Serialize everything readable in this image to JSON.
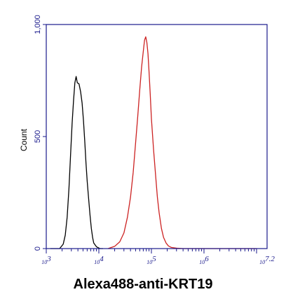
{
  "chart_data": {
    "type": "line",
    "xlabel": "Alexa488-anti-KRT19",
    "ylabel": "Count",
    "x_scale": "log",
    "xlim": [
      1000,
      15848932
    ],
    "ylim": [
      0,
      1000
    ],
    "y_ticks": [
      "0",
      "500",
      "1,000"
    ],
    "x_ticks": [
      {
        "base": "10",
        "exp": "3",
        "value": 1000
      },
      {
        "base": "10",
        "exp": "4",
        "value": 10000
      },
      {
        "base": "10",
        "exp": "5",
        "value": 100000
      },
      {
        "base": "10",
        "exp": "6",
        "value": 1000000
      },
      {
        "base": "10",
        "exp": "7.2",
        "value": 15848932
      }
    ],
    "grid": false,
    "legend": "none",
    "colors": {
      "axis": "#1a1a8c",
      "control": "#000000",
      "stained": "#cc2222"
    },
    "series": [
      {
        "color": "#000000",
        "x": [
          1200,
          1500,
          1800,
          2100,
          2300,
          2500,
          2700,
          2900,
          3100,
          3300,
          3500,
          3700,
          3900,
          4200,
          4500,
          4800,
          5100,
          5400,
          5700,
          6000,
          6400,
          6800,
          7200,
          7600,
          8000,
          9000,
          10500,
          12000
        ],
        "y": [
          0,
          0,
          0,
          20,
          60,
          140,
          270,
          420,
          560,
          660,
          740,
          768,
          740,
          735,
          700,
          650,
          570,
          480,
          380,
          300,
          220,
          150,
          90,
          50,
          25,
          8,
          0,
          0
        ]
      },
      {
        "color": "#cc2222",
        "x": [
          15000,
          20000,
          25000,
          30000,
          35000,
          40000,
          45000,
          50000,
          55000,
          60000,
          65000,
          70000,
          74000,
          78000,
          82000,
          86000,
          90000,
          95000,
          100000,
          110000,
          120000,
          130000,
          140000,
          155000,
          170000,
          190000,
          210000,
          240000,
          300000,
          400000,
          1000000,
          10000000
        ],
        "y": [
          0,
          10,
          30,
          70,
          140,
          230,
          340,
          470,
          590,
          710,
          810,
          880,
          930,
          945,
          920,
          870,
          790,
          690,
          580,
          440,
          330,
          230,
          160,
          90,
          50,
          25,
          12,
          5,
          2,
          0,
          0,
          0
        ]
      }
    ]
  }
}
